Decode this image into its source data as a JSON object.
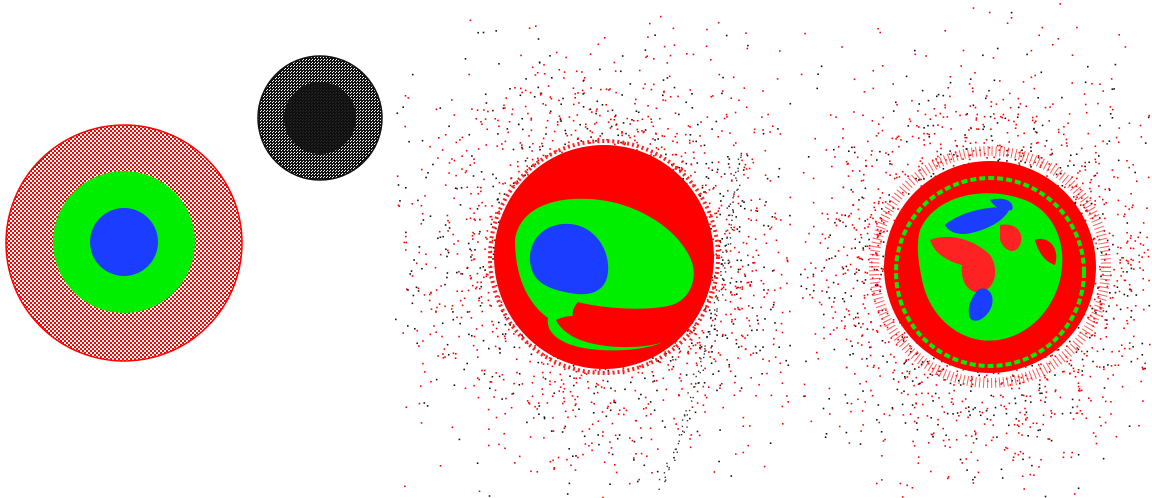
{
  "scene": {
    "background": "#ffffff",
    "colors": {
      "mantle": "#ff0000",
      "outer_core": "#00ee00",
      "inner_core": "#1a3dff",
      "impactor": "#000000"
    },
    "panels": [
      {
        "name": "initial-bodies",
        "description_tag": "target-body-with-impactor"
      },
      {
        "name": "impact-aftermath",
        "description_tag": "deformed-body-with-debris"
      },
      {
        "name": "late-mixing",
        "description_tag": "mixed-body-with-halo"
      }
    ]
  }
}
